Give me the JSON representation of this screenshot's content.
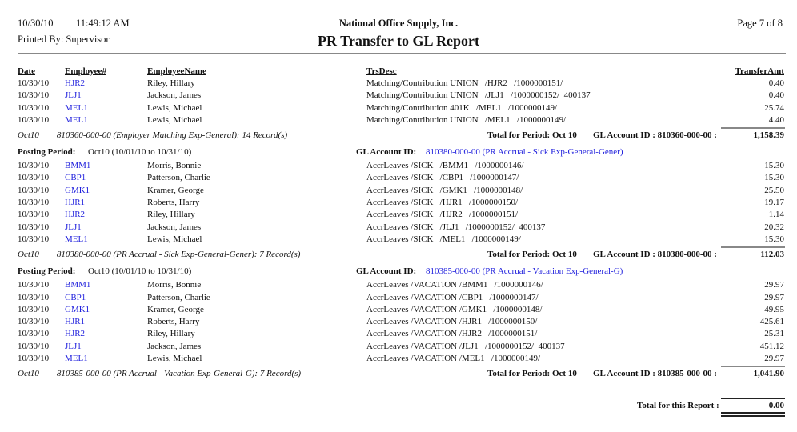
{
  "header": {
    "date": "10/30/10",
    "time": "11:49:12 AM",
    "printed_by": "Printed By: Supervisor",
    "company": "National Office Supply, Inc.",
    "title": "PR Transfer to GL Report",
    "page": "Page 7 of 8"
  },
  "columns": {
    "date": "Date",
    "employee": "Employee#",
    "name": "EmployeeName",
    "desc": "TrsDesc",
    "amount": "TransferAmt"
  },
  "colors": {
    "link": "#2222dd"
  },
  "sections": [
    {
      "rows": [
        {
          "date": "10/30/10",
          "emp": "HJR2",
          "name": "Riley, Hillary",
          "desc": "Matching/Contribution UNION   /HJR2   /1000000151/",
          "amt": "0.40"
        },
        {
          "date": "10/30/10",
          "emp": "JLJ1",
          "name": "Jackson, James",
          "desc": "Matching/Contribution UNION   /JLJ1   /1000000152/  400137",
          "amt": "0.40"
        },
        {
          "date": "10/30/10",
          "emp": "MEL1",
          "name": "Lewis, Michael",
          "desc": "Matching/Contribution 401K   /MEL1   /1000000149/",
          "amt": "25.74"
        },
        {
          "date": "10/30/10",
          "emp": "MEL1",
          "name": "Lewis, Michael",
          "desc": "Matching/Contribution UNION   /MEL1   /1000000149/",
          "amt": "4.40"
        }
      ],
      "summary_period": "Oct10",
      "summary_account": "810360-000-00 (Employer Matching Exp-General): 14 Record(s)",
      "total_period": "Total for Period: Oct 10",
      "total_account": "GL Account ID : 810360-000-00 :",
      "total_amt": "1,158.39"
    },
    {
      "posting_label": "Posting Period:",
      "posting_value": "Oct10 (10/01/10 to 10/31/10)",
      "gl_label": "GL Account ID:",
      "gl_value": "810380-000-00 (PR Accrual - Sick Exp-General-Gener)",
      "rows": [
        {
          "date": "10/30/10",
          "emp": "BMM1",
          "name": "Morris, Bonnie",
          "desc": "AccrLeaves /SICK   /BMM1   /1000000146/",
          "amt": "15.30"
        },
        {
          "date": "10/30/10",
          "emp": "CBP1",
          "name": "Patterson, Charlie",
          "desc": "AccrLeaves /SICK   /CBP1   /1000000147/",
          "amt": "15.30"
        },
        {
          "date": "10/30/10",
          "emp": "GMK1",
          "name": "Kramer, George",
          "desc": "AccrLeaves /SICK   /GMK1   /1000000148/",
          "amt": "25.50"
        },
        {
          "date": "10/30/10",
          "emp": "HJR1",
          "name": "Roberts, Harry",
          "desc": "AccrLeaves /SICK   /HJR1   /1000000150/",
          "amt": "19.17"
        },
        {
          "date": "10/30/10",
          "emp": "HJR2",
          "name": "Riley, Hillary",
          "desc": "AccrLeaves /SICK   /HJR2   /1000000151/",
          "amt": "1.14"
        },
        {
          "date": "10/30/10",
          "emp": "JLJ1",
          "name": "Jackson, James",
          "desc": "AccrLeaves /SICK   /JLJ1   /1000000152/  400137",
          "amt": "20.32"
        },
        {
          "date": "10/30/10",
          "emp": "MEL1",
          "name": "Lewis, Michael",
          "desc": "AccrLeaves /SICK   /MEL1   /1000000149/",
          "amt": "15.30"
        }
      ],
      "summary_period": "Oct10",
      "summary_account": "810380-000-00 (PR Accrual - Sick Exp-General-Gener): 7 Record(s)",
      "total_period": "Total for Period: Oct 10",
      "total_account": "GL Account ID : 810380-000-00 :",
      "total_amt": "112.03"
    },
    {
      "posting_label": "Posting Period:",
      "posting_value": "Oct10 (10/01/10 to 10/31/10)",
      "gl_label": "GL Account ID:",
      "gl_value": "810385-000-00 (PR Accrual - Vacation Exp-General-G)",
      "rows": [
        {
          "date": "10/30/10",
          "emp": "BMM1",
          "name": "Morris, Bonnie",
          "desc": "AccrLeaves /VACATION /BMM1   /1000000146/",
          "amt": "29.97"
        },
        {
          "date": "10/30/10",
          "emp": "CBP1",
          "name": "Patterson, Charlie",
          "desc": "AccrLeaves /VACATION /CBP1   /1000000147/",
          "amt": "29.97"
        },
        {
          "date": "10/30/10",
          "emp": "GMK1",
          "name": "Kramer, George",
          "desc": "AccrLeaves /VACATION /GMK1   /1000000148/",
          "amt": "49.95"
        },
        {
          "date": "10/30/10",
          "emp": "HJR1",
          "name": "Roberts, Harry",
          "desc": "AccrLeaves /VACATION /HJR1   /1000000150/",
          "amt": "425.61"
        },
        {
          "date": "10/30/10",
          "emp": "HJR2",
          "name": "Riley, Hillary",
          "desc": "AccrLeaves /VACATION /HJR2   /1000000151/",
          "amt": "25.31"
        },
        {
          "date": "10/30/10",
          "emp": "JLJ1",
          "name": "Jackson, James",
          "desc": "AccrLeaves /VACATION /JLJ1   /1000000152/  400137",
          "amt": "451.12"
        },
        {
          "date": "10/30/10",
          "emp": "MEL1",
          "name": "Lewis, Michael",
          "desc": "AccrLeaves /VACATION /MEL1   /1000000149/",
          "amt": "29.97"
        }
      ],
      "summary_period": "Oct10",
      "summary_account": "810385-000-00 (PR Accrual - Vacation Exp-General-G): 7 Record(s)",
      "total_period": "Total for Period: Oct 10",
      "total_account": "GL Account ID : 810385-000-00 :",
      "total_amt": "1,041.90"
    }
  ],
  "grand_total": {
    "label": "Total for this Report :",
    "amount": "0.00"
  }
}
